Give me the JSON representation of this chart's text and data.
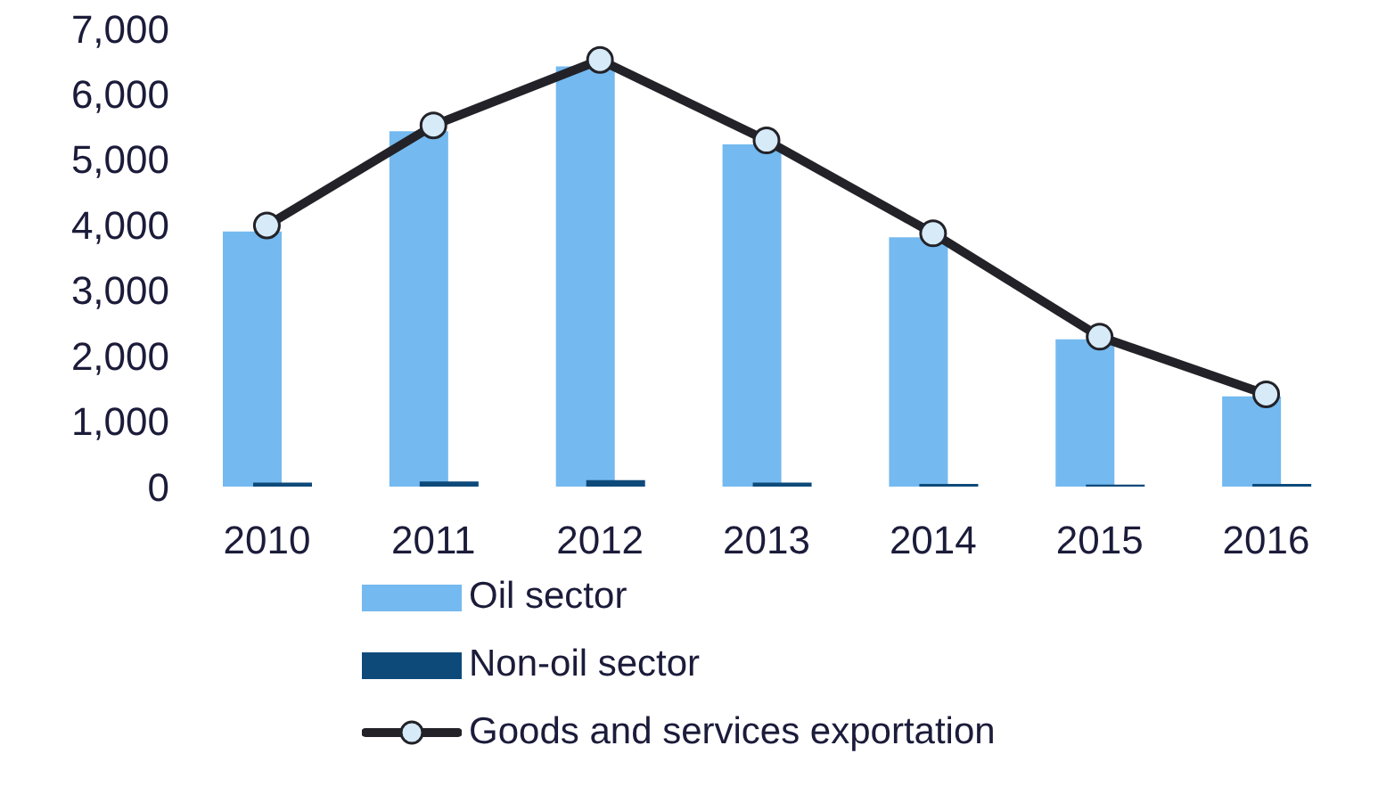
{
  "chart_data": {
    "type": "bar",
    "categories": [
      "2010",
      "2011",
      "2012",
      "2013",
      "2014",
      "2015",
      "2016"
    ],
    "series": [
      {
        "name": "Oil sector",
        "color": "#74b9ef",
        "values": [
          3900,
          5430,
          6420,
          5230,
          3810,
          2250,
          1380
        ]
      },
      {
        "name": "Non-oil sector",
        "color": "#0d4a7a",
        "values": [
          60,
          80,
          100,
          60,
          40,
          30,
          40
        ]
      },
      {
        "name": "Goods and services exportation",
        "type": "line",
        "color": "#222228",
        "values": [
          3990,
          5520,
          6520,
          5290,
          3870,
          2290,
          1410
        ]
      }
    ],
    "ylim": [
      0,
      7000
    ],
    "yticks": [
      0,
      {
        "value": 1000,
        "label": "1,000"
      },
      {
        "value": 2000,
        "label": "2,000"
      },
      {
        "value": 3000,
        "label": "3,000"
      },
      {
        "value": 4000,
        "label": "4,000"
      },
      {
        "value": 5000,
        "label": "5,000"
      },
      {
        "value": 6000,
        "label": "6,000"
      },
      {
        "value": 7000,
        "label": "7,000"
      }
    ],
    "grid": false,
    "legend": "bottom",
    "marker": "circle"
  }
}
